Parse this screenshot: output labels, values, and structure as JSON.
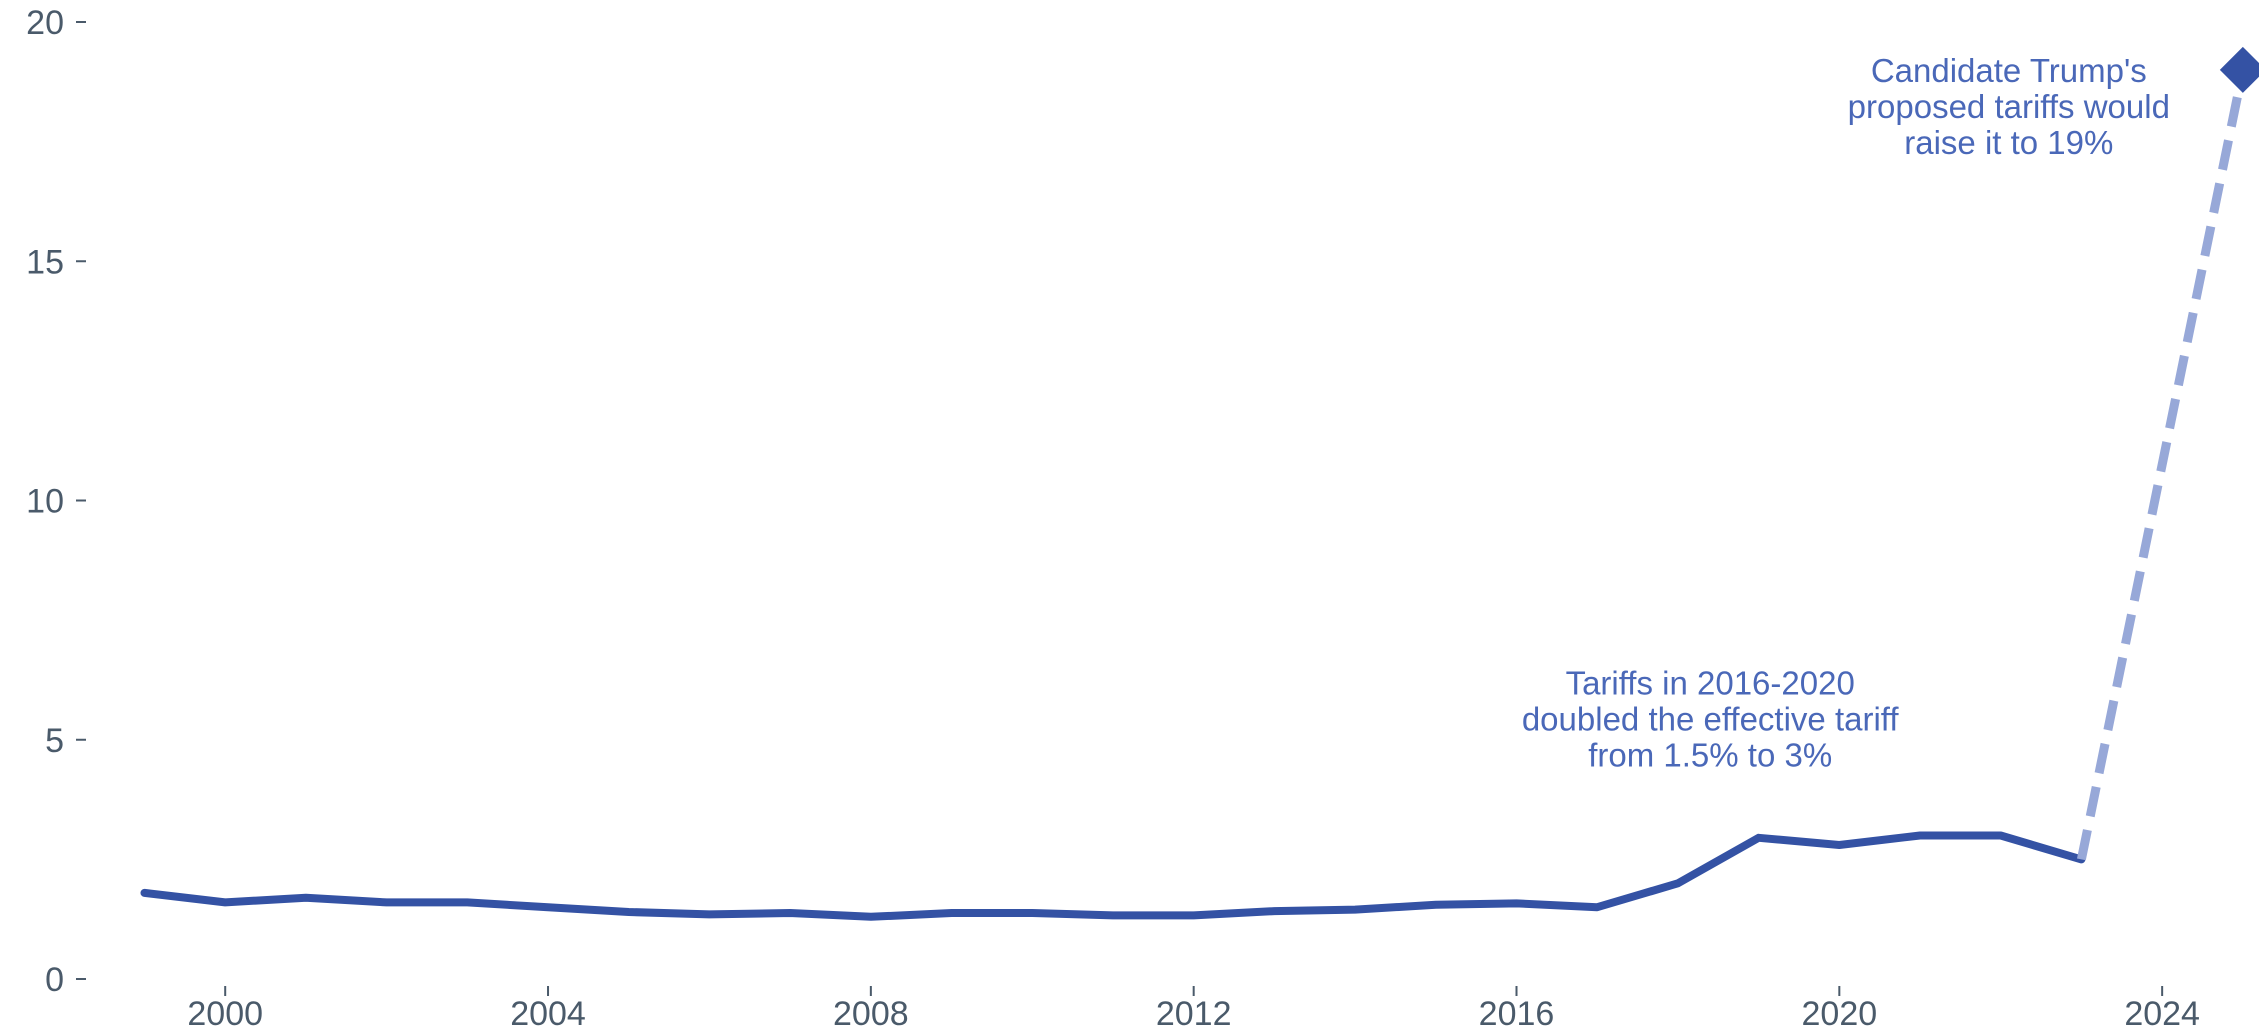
{
  "chart_data": {
    "type": "line",
    "title": "",
    "xlabel": "",
    "ylabel": "",
    "xlim": [
      1998.3,
      2025.2
    ],
    "ylim": [
      0,
      20
    ],
    "x_ticks": [
      2000,
      2004,
      2008,
      2012,
      2016,
      2020,
      2024
    ],
    "y_ticks": [
      0,
      5,
      10,
      15,
      20
    ],
    "grid": false,
    "legend": "none",
    "colors": {
      "actual": "#3452a4",
      "projection": "#97a8d8",
      "annotation": "#4a68b8",
      "tick": "#4a5a6a"
    },
    "series": [
      {
        "style": "solid",
        "x": [
          1999,
          2000,
          2001,
          2002,
          2003,
          2004,
          2005,
          2006,
          2007,
          2008,
          2009,
          2010,
          2011,
          2012,
          2013,
          2014,
          2015,
          2016,
          2017,
          2018,
          2019,
          2020,
          2021,
          2022,
          2023
        ],
        "y": [
          1.8,
          1.6,
          1.7,
          1.6,
          1.6,
          1.5,
          1.4,
          1.35,
          1.38,
          1.3,
          1.38,
          1.38,
          1.33,
          1.33,
          1.42,
          1.45,
          1.55,
          1.58,
          1.5,
          2.0,
          2.95,
          2.8,
          3.0,
          3.0,
          2.5
        ]
      },
      {
        "style": "dashed",
        "marker": "diamond",
        "x": [
          2023,
          2025
        ],
        "y": [
          2.5,
          19
        ]
      }
    ],
    "annotations": [
      {
        "lines": [
          "Tariffs in 2016-2020",
          "doubled the effective tariff",
          "from 1.5% to 3%"
        ],
        "x": 2018.4,
        "y": 6.2
      },
      {
        "lines": [
          "Candidate Trump's",
          "proposed tariffs would",
          "raise it to 19%"
        ],
        "x": 2022.1,
        "y": 19.0
      }
    ]
  }
}
